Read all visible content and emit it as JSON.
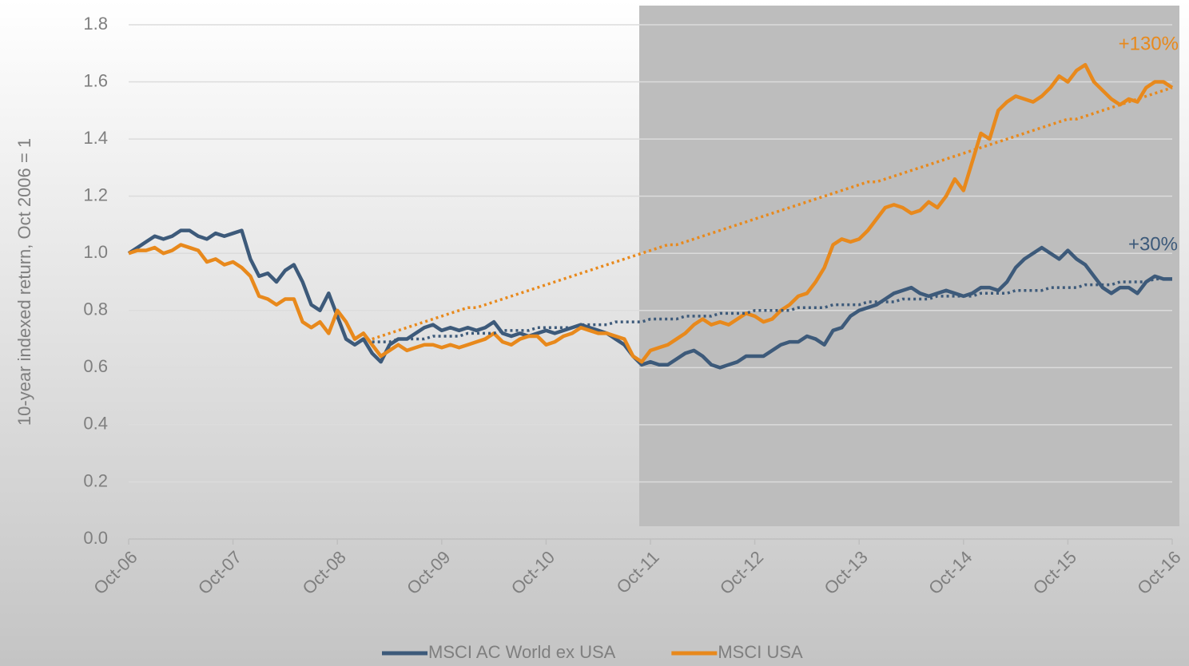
{
  "chart_data": {
    "type": "line",
    "y_label": "10-year indexed return, Oct 2006 = 1",
    "categories": [
      "Oct-06",
      null,
      null,
      null,
      null,
      null,
      null,
      null,
      null,
      null,
      null,
      null,
      "Oct-07",
      null,
      null,
      null,
      null,
      null,
      null,
      null,
      null,
      null,
      null,
      null,
      "Oct-08",
      null,
      null,
      null,
      null,
      null,
      null,
      null,
      null,
      null,
      null,
      null,
      "Oct-09",
      null,
      null,
      null,
      null,
      null,
      null,
      null,
      null,
      null,
      null,
      null,
      "Oct-10",
      null,
      null,
      null,
      null,
      null,
      null,
      null,
      null,
      null,
      null,
      null,
      "Oct-11",
      null,
      null,
      null,
      null,
      null,
      null,
      null,
      null,
      null,
      null,
      null,
      "Oct-12",
      null,
      null,
      null,
      null,
      null,
      null,
      null,
      null,
      null,
      null,
      null,
      "Oct-13",
      null,
      null,
      null,
      null,
      null,
      null,
      null,
      null,
      null,
      null,
      null,
      "Oct-14",
      null,
      null,
      null,
      null,
      null,
      null,
      null,
      null,
      null,
      null,
      null,
      "Oct-15",
      null,
      null,
      null,
      null,
      null,
      null,
      null,
      null,
      null,
      null,
      null,
      "Oct-16"
    ],
    "series": [
      {
        "name": "MSCI AC World ex USA",
        "color": "#3d5a7a",
        "style": "solid",
        "values": [
          1.0,
          1.02,
          1.04,
          1.06,
          1.05,
          1.06,
          1.08,
          1.08,
          1.06,
          1.05,
          1.07,
          1.06,
          1.07,
          1.08,
          0.98,
          0.92,
          0.93,
          0.9,
          0.94,
          0.96,
          0.9,
          0.82,
          0.8,
          0.86,
          0.78,
          0.7,
          0.68,
          0.7,
          0.65,
          0.62,
          0.68,
          0.7,
          0.7,
          0.72,
          0.74,
          0.75,
          0.73,
          0.74,
          0.73,
          0.74,
          0.73,
          0.74,
          0.76,
          0.72,
          0.71,
          0.72,
          0.71,
          0.72,
          0.73,
          0.72,
          0.73,
          0.74,
          0.75,
          0.74,
          0.73,
          0.72,
          0.7,
          0.68,
          0.64,
          0.61,
          0.62,
          0.61,
          0.61,
          0.63,
          0.65,
          0.66,
          0.64,
          0.61,
          0.6,
          0.61,
          0.62,
          0.64,
          0.64,
          0.64,
          0.66,
          0.68,
          0.69,
          0.69,
          0.71,
          0.7,
          0.68,
          0.73,
          0.74,
          0.78,
          0.8,
          0.81,
          0.82,
          0.84,
          0.86,
          0.87,
          0.88,
          0.86,
          0.85,
          0.86,
          0.87,
          0.86,
          0.85,
          0.86,
          0.88,
          0.88,
          0.87,
          0.9,
          0.95,
          0.98,
          1.0,
          1.02,
          1.0,
          0.98,
          1.01,
          0.98,
          0.96,
          0.92,
          0.88,
          0.86,
          0.88,
          0.88,
          0.86,
          0.9,
          0.92,
          0.91,
          0.91
        ]
      },
      {
        "name": "MSCI USA",
        "color": "#e8891c",
        "style": "solid",
        "values": [
          1.0,
          1.01,
          1.01,
          1.02,
          1.0,
          1.01,
          1.03,
          1.02,
          1.01,
          0.97,
          0.98,
          0.96,
          0.97,
          0.95,
          0.92,
          0.85,
          0.84,
          0.82,
          0.84,
          0.84,
          0.76,
          0.74,
          0.76,
          0.72,
          0.8,
          0.76,
          0.7,
          0.72,
          0.68,
          0.64,
          0.66,
          0.68,
          0.66,
          0.67,
          0.68,
          0.68,
          0.67,
          0.68,
          0.67,
          0.68,
          0.69,
          0.7,
          0.72,
          0.69,
          0.68,
          0.7,
          0.71,
          0.71,
          0.68,
          0.69,
          0.71,
          0.72,
          0.74,
          0.73,
          0.72,
          0.72,
          0.71,
          0.7,
          0.64,
          0.62,
          0.66,
          0.67,
          0.68,
          0.7,
          0.72,
          0.75,
          0.77,
          0.75,
          0.76,
          0.75,
          0.77,
          0.79,
          0.78,
          0.76,
          0.77,
          0.8,
          0.82,
          0.85,
          0.86,
          0.9,
          0.95,
          1.03,
          1.05,
          1.04,
          1.05,
          1.08,
          1.12,
          1.16,
          1.17,
          1.16,
          1.14,
          1.15,
          1.18,
          1.16,
          1.2,
          1.26,
          1.22,
          1.32,
          1.42,
          1.4,
          1.5,
          1.53,
          1.55,
          1.54,
          1.53,
          1.55,
          1.58,
          1.62,
          1.6,
          1.64,
          1.66,
          1.6,
          1.57,
          1.54,
          1.52,
          1.54,
          1.53,
          1.58,
          1.6,
          1.6,
          1.58
        ]
      },
      {
        "color": "#3d5a7a",
        "style": "dotted",
        "values": [
          null,
          null,
          null,
          null,
          null,
          null,
          null,
          null,
          null,
          null,
          null,
          null,
          null,
          null,
          null,
          null,
          null,
          null,
          null,
          null,
          null,
          null,
          null,
          null,
          null,
          null,
          null,
          null,
          0.69,
          0.69,
          0.69,
          0.7,
          0.7,
          0.7,
          0.7,
          0.71,
          0.71,
          0.71,
          0.71,
          0.72,
          0.72,
          0.72,
          0.72,
          0.73,
          0.73,
          0.73,
          0.73,
          0.74,
          0.74,
          0.74,
          0.74,
          0.74,
          0.75,
          0.75,
          0.75,
          0.75,
          0.76,
          0.76,
          0.76,
          0.76,
          0.77,
          0.77,
          0.77,
          0.77,
          0.78,
          0.78,
          0.78,
          0.78,
          0.79,
          0.79,
          0.79,
          0.79,
          0.8,
          0.8,
          0.8,
          0.8,
          0.8,
          0.81,
          0.81,
          0.81,
          0.81,
          0.82,
          0.82,
          0.82,
          0.82,
          0.83,
          0.83,
          0.83,
          0.83,
          0.84,
          0.84,
          0.84,
          0.84,
          0.85,
          0.85,
          0.85,
          0.85,
          0.85,
          0.86,
          0.86,
          0.86,
          0.86,
          0.87,
          0.87,
          0.87,
          0.87,
          0.88,
          0.88,
          0.88,
          0.88,
          0.89,
          0.89,
          0.89,
          0.89,
          0.9,
          0.9,
          0.9,
          0.9,
          0.91,
          0.91,
          0.91
        ]
      },
      {
        "color": "#e8891c",
        "style": "dotted",
        "values": [
          null,
          null,
          null,
          null,
          null,
          null,
          null,
          null,
          null,
          null,
          null,
          null,
          null,
          null,
          null,
          null,
          null,
          null,
          null,
          null,
          null,
          null,
          null,
          null,
          null,
          null,
          null,
          null,
          0.7,
          0.71,
          0.72,
          0.73,
          0.74,
          0.75,
          0.76,
          0.77,
          0.78,
          0.79,
          0.8,
          0.81,
          0.81,
          0.82,
          0.83,
          0.84,
          0.85,
          0.86,
          0.87,
          0.88,
          0.89,
          0.9,
          0.91,
          0.92,
          0.93,
          0.94,
          0.95,
          0.96,
          0.97,
          0.98,
          0.99,
          1.0,
          1.01,
          1.02,
          1.03,
          1.03,
          1.04,
          1.05,
          1.06,
          1.07,
          1.08,
          1.09,
          1.1,
          1.11,
          1.12,
          1.13,
          1.14,
          1.15,
          1.16,
          1.17,
          1.18,
          1.19,
          1.2,
          1.21,
          1.22,
          1.23,
          1.24,
          1.25,
          1.25,
          1.26,
          1.27,
          1.28,
          1.29,
          1.3,
          1.31,
          1.32,
          1.33,
          1.34,
          1.35,
          1.36,
          1.37,
          1.38,
          1.39,
          1.4,
          1.41,
          1.42,
          1.43,
          1.44,
          1.45,
          1.46,
          1.47,
          1.47,
          1.48,
          1.49,
          1.5,
          1.51,
          1.52,
          1.53,
          1.54,
          1.55,
          1.56,
          1.57,
          1.58
        ]
      }
    ],
    "annotations": [
      {
        "text": "+130%",
        "color": "#e8891c"
      },
      {
        "text": "+30%",
        "color": "#3d5a7a"
      }
    ],
    "ylim": [
      0,
      1.8
    ],
    "yticks": [
      {
        "value": 0,
        "label": "0.0"
      },
      0.2,
      0.4,
      0.6,
      0.8,
      {
        "value": 1,
        "label": "1.0"
      },
      1.2,
      1.4,
      1.6,
      1.8
    ],
    "grid": true,
    "legend": "bottom"
  }
}
